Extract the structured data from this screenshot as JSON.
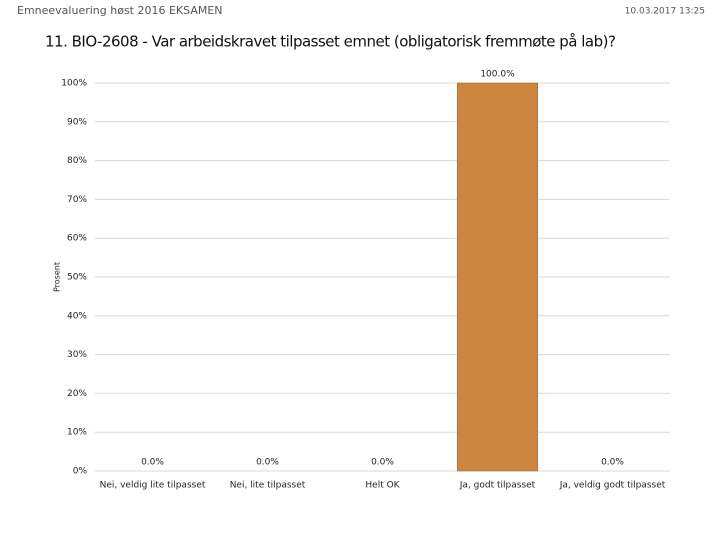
{
  "header": {
    "title": "Emneevaluering høst 2016 EKSAMEN",
    "timestamp": "10.03.2017 13:25"
  },
  "chart_data": {
    "type": "bar",
    "title": "11. BIO-2608 - Var arbeidskravet tilpasset emnet (obligatorisk fremmøte på lab)?",
    "y_label": "Prosent",
    "categories": [
      "Nei, veldig lite tilpasset",
      "Nei, lite tilpasset",
      "Helt OK",
      "Ja, godt tilpasset",
      "Ja, veldig godt tilpasset"
    ],
    "values": [
      0,
      0,
      0,
      100,
      0
    ],
    "value_labels": [
      "0.0%",
      "0.0%",
      "0.0%",
      "100.0%",
      "0.0%"
    ],
    "color": "#cd853f",
    "ylim": [
      0,
      100
    ],
    "yticks": [
      {
        "value": 0,
        "label": "0%"
      },
      {
        "value": 10,
        "label": "10%"
      },
      {
        "value": 20,
        "label": "20%"
      },
      {
        "value": 30,
        "label": "30%"
      },
      {
        "value": 40,
        "label": "40%"
      },
      {
        "value": 50,
        "label": "50%"
      },
      {
        "value": 60,
        "label": "60%"
      },
      {
        "value": 70,
        "label": "70%"
      },
      {
        "value": 80,
        "label": "80%"
      },
      {
        "value": 90,
        "label": "90%"
      },
      {
        "value": 100,
        "label": "100%"
      }
    ],
    "grid": true
  }
}
